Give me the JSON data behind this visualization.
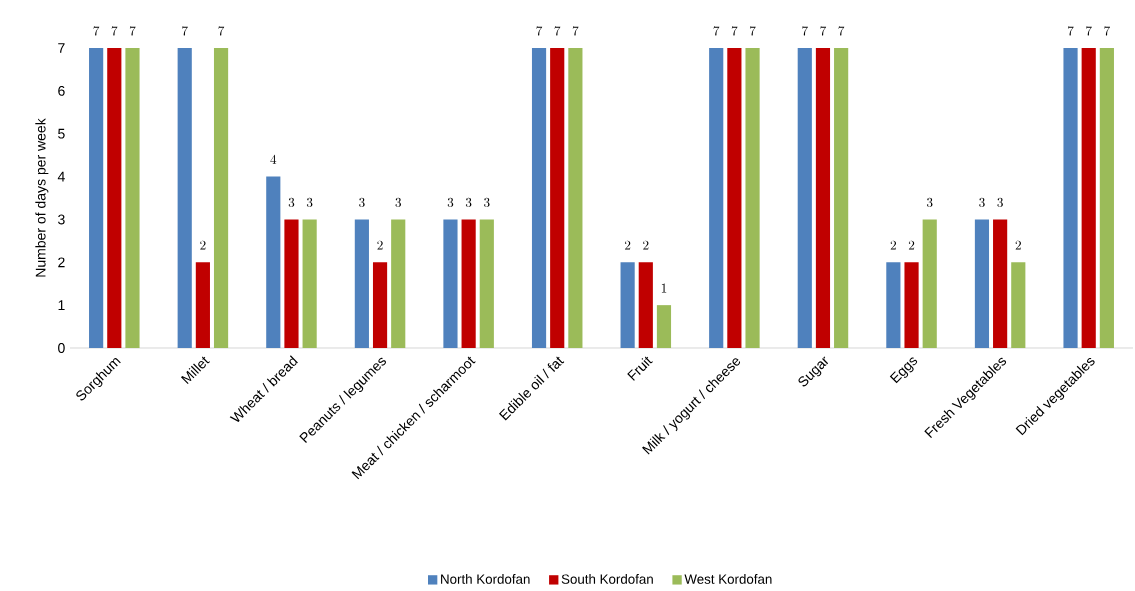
{
  "chart_data": {
    "type": "bar",
    "ylabel": "Number of days per week",
    "categories": [
      "Sorghum",
      "Millet",
      "Wheat / bread",
      "Peanuts / legumes",
      "Meat / chicken / scharmoot",
      "Edible oil / fat",
      "Fruit",
      "Milk / yogurt / cheese",
      "Sugar",
      "Eggs",
      "Fresh Vegetables",
      "Dried vegetables"
    ],
    "series": [
      {
        "name": "North Kordofan",
        "color": "#4f81bd",
        "values": [
          7,
          7,
          4,
          3,
          3,
          7,
          2,
          7,
          7,
          2,
          3,
          7
        ]
      },
      {
        "name": "South Kordofan",
        "color": "#c00000",
        "values": [
          7,
          2,
          3,
          2,
          3,
          7,
          2,
          7,
          7,
          2,
          3,
          7
        ]
      },
      {
        "name": "West Kordofan",
        "color": "#9bbb59",
        "values": [
          7,
          7,
          3,
          3,
          3,
          7,
          1,
          7,
          7,
          3,
          2,
          7
        ]
      }
    ],
    "ylim": [
      0,
      7
    ],
    "yticks": [
      0,
      1,
      2,
      3,
      4,
      5,
      6,
      7
    ],
    "data_labels": true,
    "legend": "bottom"
  }
}
